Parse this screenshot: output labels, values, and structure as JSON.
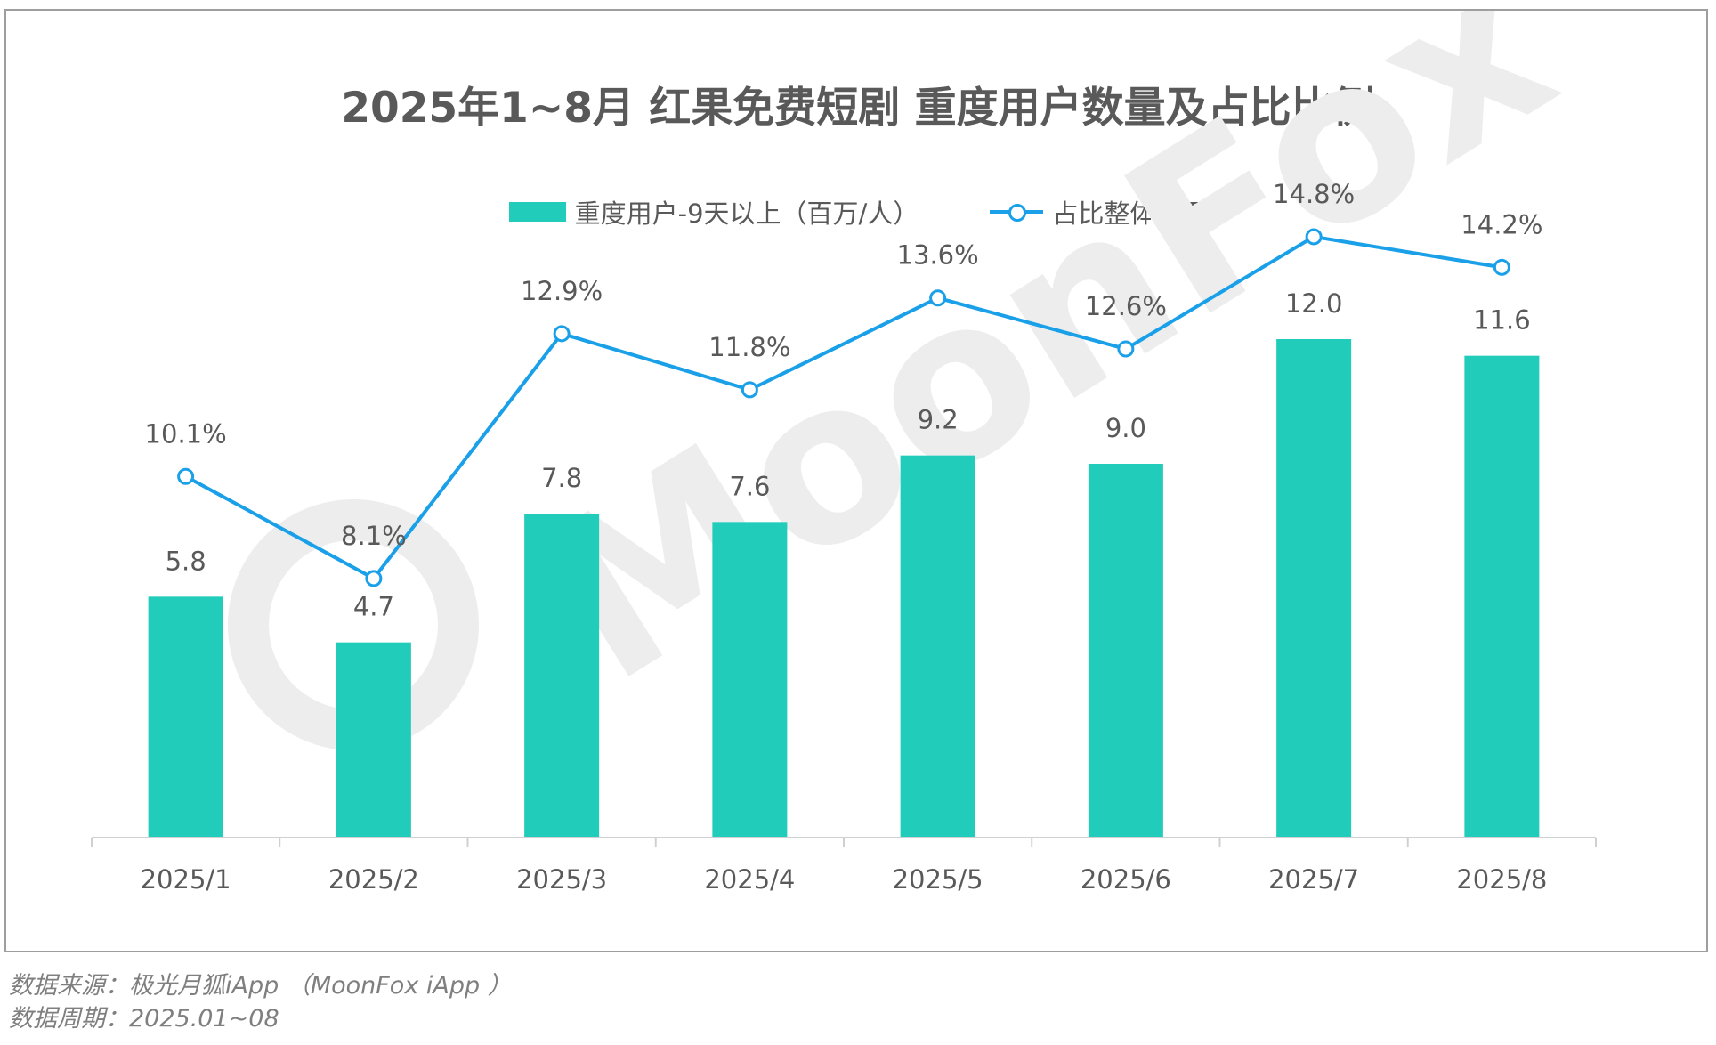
{
  "title": "2025年1~8月 红果免费短剧 重度用户数量及占比比例",
  "legend": {
    "bar_label": "重度用户-9天以上（百万/人）",
    "line_label": "占比整体比例"
  },
  "watermark": "MoonFox",
  "colors": {
    "bar": "#22ccbb",
    "line": "#1aa0e8",
    "title": "#595959",
    "label": "#595959",
    "footer": "#7f7f7f"
  },
  "footer": {
    "source": "数据来源：极光月狐iApp （MoonFox iApp ）",
    "period": "数据周期：2025.01~08"
  },
  "chart_data": {
    "type": "bar",
    "categories": [
      "2025/1",
      "2025/2",
      "2025/3",
      "2025/4",
      "2025/5",
      "2025/6",
      "2025/7",
      "2025/8"
    ],
    "series": [
      {
        "name": "重度用户-9天以上（百万/人）",
        "type": "bar",
        "values": [
          5.8,
          4.7,
          7.8,
          7.6,
          9.2,
          9.0,
          12.0,
          11.6
        ],
        "labels": [
          "5.8",
          "4.7",
          "7.8",
          "7.6",
          "9.2",
          "9.0",
          "12.0",
          "11.6"
        ]
      },
      {
        "name": "占比整体比例",
        "type": "line",
        "values": [
          10.1,
          8.1,
          12.9,
          11.8,
          13.6,
          12.6,
          14.8,
          14.2
        ],
        "labels": [
          "10.1%",
          "8.1%",
          "12.9%",
          "11.8%",
          "13.6%",
          "12.6%",
          "14.8%",
          "14.2%"
        ]
      }
    ],
    "legend_position": "top-center",
    "grid": false
  }
}
